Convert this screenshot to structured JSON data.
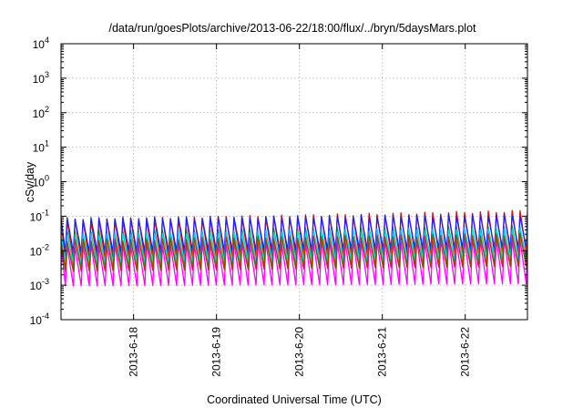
{
  "chart_data": {
    "type": "line",
    "title": "/data/run/goesPlots/archive/2013-06-22/18:00/flux/../bryn/5daysMars.plot",
    "xlabel": "Coordinated Universal Time (UTC)",
    "ylabel": "cSv/day",
    "y_scale": "log",
    "ylim": [
      0.0001,
      10000
    ],
    "xlim": [
      "2013-06-17T03:00",
      "2013-06-22T18:00"
    ],
    "x_ticks": [
      "2013-6-18",
      "2013-6-19",
      "2013-6-20",
      "2013-6-21",
      "2013-6-22"
    ],
    "y_ticks": [
      {
        "base": "10",
        "exp": "-4"
      },
      {
        "base": "10",
        "exp": "-3"
      },
      {
        "base": "10",
        "exp": "-2"
      },
      {
        "base": "10",
        "exp": "-1"
      },
      {
        "base": "10",
        "exp": "0"
      },
      {
        "base": "10",
        "exp": "1"
      },
      {
        "base": "10",
        "exp": "2"
      },
      {
        "base": "10",
        "exp": "3"
      },
      {
        "base": "10",
        "exp": "4"
      }
    ],
    "grid": true,
    "legend": "none",
    "pattern": {
      "period_hours": 2.3,
      "note_values": "sawtooth: sharp rise to peak then decay to trough each cycle"
    },
    "series": [
      {
        "color": "#ff0000",
        "peak_start": 0.075,
        "peak_end": 0.14,
        "trough_start": 0.0055,
        "trough_end": 0.009
      },
      {
        "color": "#00c000",
        "peak_start": 0.035,
        "peak_end": 0.05,
        "trough_start": 0.0035,
        "trough_end": 0.005
      },
      {
        "color": "#2020ff",
        "peak_start": 0.085,
        "peak_end": 0.11,
        "trough_start": 0.009,
        "trough_end": 0.012
      },
      {
        "color": "#ff00ff",
        "peak_start": 0.014,
        "peak_end": 0.022,
        "trough_start": 0.00095,
        "trough_end": 0.0011
      },
      {
        "color": "#00dddd",
        "peak_start": 0.03,
        "peak_end": 0.045,
        "trough_start": 0.0045,
        "trough_end": 0.006
      },
      {
        "color": "#a04000",
        "peak_start": 0.02,
        "peak_end": 0.03,
        "trough_start": 0.0025,
        "trough_end": 0.0035
      }
    ]
  }
}
